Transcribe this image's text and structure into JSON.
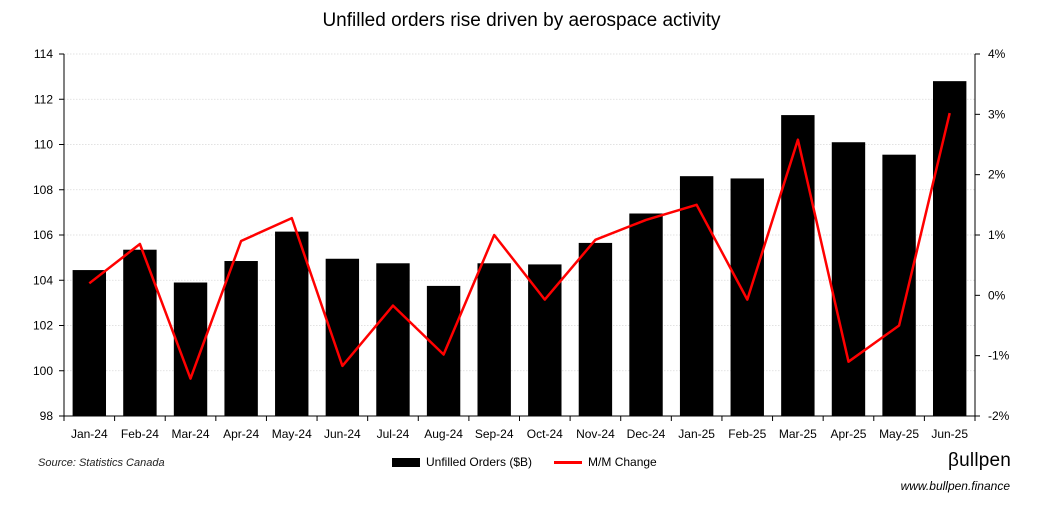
{
  "chart_data": {
    "type": "bar+line",
    "title": "Unfilled orders rise driven by aerospace activity",
    "categories": [
      "Jan-24",
      "Feb-24",
      "Mar-24",
      "Apr-24",
      "May-24",
      "Jun-24",
      "Jul-24",
      "Aug-24",
      "Sep-24",
      "Oct-24",
      "Nov-24",
      "Dec-24",
      "Jan-25",
      "Feb-25",
      "Mar-25",
      "Apr-25",
      "May-25",
      "Jun-25"
    ],
    "series": [
      {
        "name": "Unfilled Orders ($B)",
        "type": "bar",
        "axis": "left",
        "color": "#000000",
        "values": [
          104.45,
          105.35,
          103.9,
          104.85,
          106.15,
          104.95,
          104.75,
          103.75,
          104.75,
          104.7,
          105.65,
          106.95,
          108.6,
          108.5,
          111.3,
          110.1,
          109.55,
          112.8
        ]
      },
      {
        "name": "M/M Change",
        "type": "line",
        "axis": "right",
        "color": "#ff0000",
        "values": [
          0.2,
          0.85,
          -1.38,
          0.9,
          1.28,
          -1.17,
          -0.17,
          -0.98,
          1.0,
          -0.07,
          0.92,
          1.25,
          1.5,
          -0.07,
          2.58,
          -1.1,
          -0.5,
          3.02
        ]
      }
    ],
    "y_left": {
      "min": 98,
      "max": 114,
      "ticks": [
        98,
        100,
        102,
        104,
        106,
        108,
        110,
        112,
        114
      ]
    },
    "y_right": {
      "min": -2,
      "max": 4,
      "ticks": [
        -2,
        -1,
        0,
        1,
        2,
        3,
        4
      ],
      "tick_labels": [
        "-2%",
        "-1%",
        "0%",
        "1%",
        "2%",
        "3%",
        "4%"
      ]
    },
    "grid": true,
    "legend_position": "bottom-center"
  },
  "source_note": "Source: Statistics Canada",
  "brand": {
    "name": "βullpen",
    "url": "www.bullpen.finance"
  }
}
